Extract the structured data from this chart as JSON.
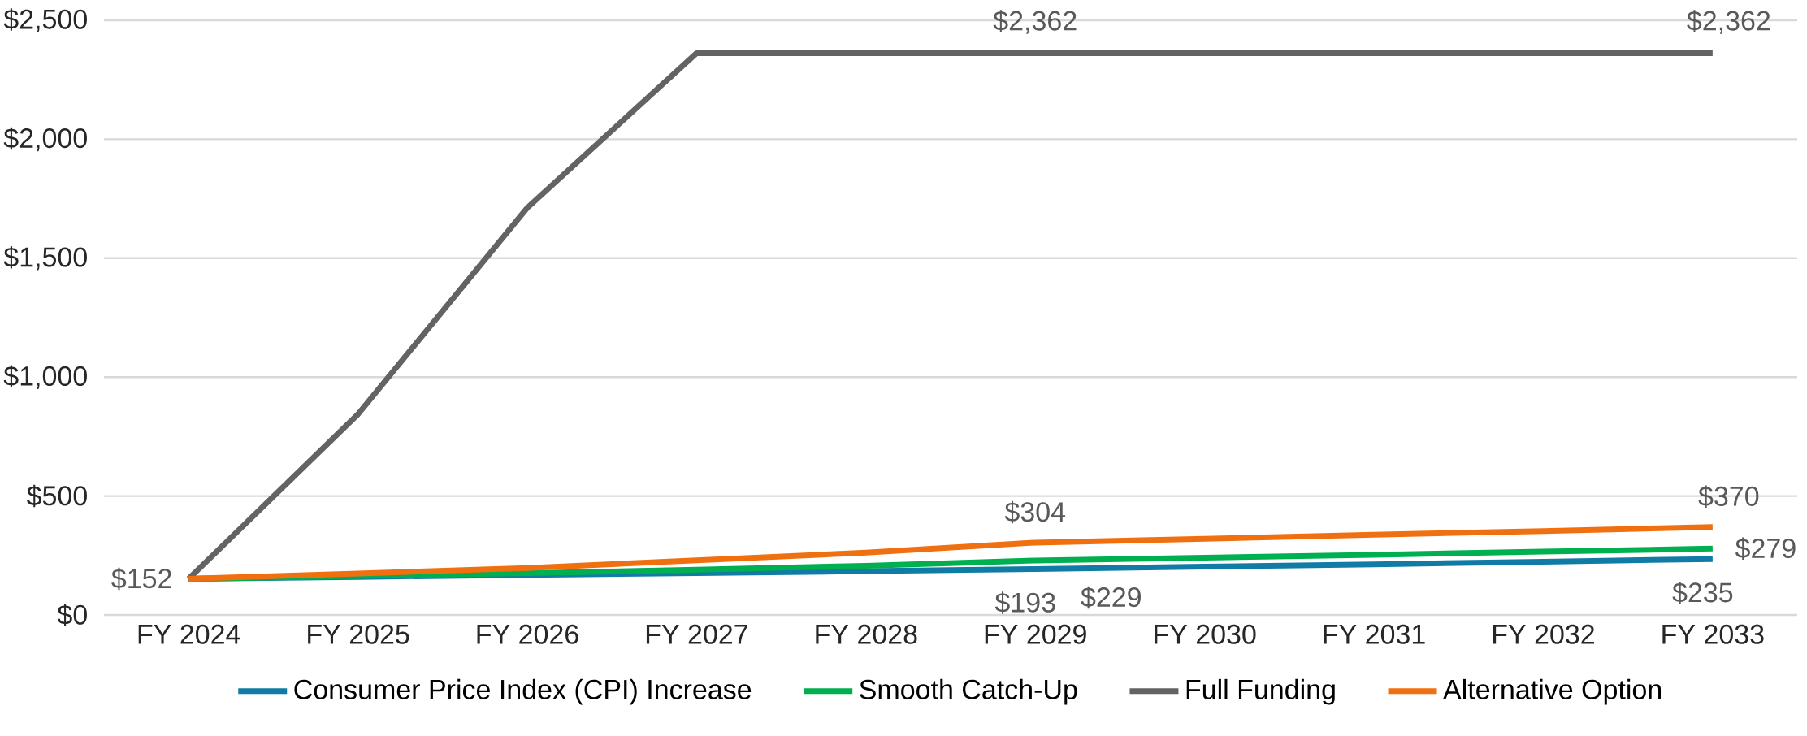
{
  "chart_data": {
    "type": "line",
    "categories": [
      "FY 2024",
      "FY 2025",
      "FY 2026",
      "FY 2027",
      "FY 2028",
      "FY 2029",
      "FY 2030",
      "FY 2031",
      "FY 2032",
      "FY 2033"
    ],
    "series": [
      {
        "name": "Consumer Price Index (CPI) Increase",
        "color": "#107ca6",
        "values": [
          152,
          160,
          168,
          176,
          184,
          193,
          203,
          213,
          224,
          235
        ],
        "value_labels": [
          null,
          null,
          null,
          null,
          null,
          "$193",
          null,
          null,
          null,
          "$235"
        ]
      },
      {
        "name": "Smooth Catch-Up",
        "color": "#00b050",
        "values": [
          152,
          164,
          176,
          190,
          207,
          229,
          241,
          253,
          266,
          279
        ],
        "value_labels": [
          null,
          null,
          null,
          null,
          null,
          "$229",
          null,
          null,
          null,
          "$279"
        ]
      },
      {
        "name": "Full Funding",
        "color": "#636363",
        "values": [
          152,
          844,
          1712,
          2362,
          2362,
          2362,
          2362,
          2362,
          2362,
          2362
        ],
        "value_labels": [
          null,
          null,
          null,
          null,
          null,
          "$2,362",
          null,
          null,
          null,
          "$2,362"
        ]
      },
      {
        "name": "Alternative Option",
        "color": "#f07010",
        "values": [
          152,
          174,
          197,
          230,
          262,
          304,
          320,
          337,
          353,
          370
        ],
        "value_labels": [
          "$152",
          null,
          null,
          null,
          null,
          "$304",
          null,
          null,
          null,
          "$370"
        ]
      }
    ],
    "ylim": [
      0,
      2500
    ],
    "yticks": [
      {
        "value": 0,
        "label": "$0"
      },
      {
        "value": 500,
        "label": "$500"
      },
      {
        "value": 1000,
        "label": "$1,000"
      },
      {
        "value": 1500,
        "label": "$1,500"
      },
      {
        "value": 2000,
        "label": "$2,000"
      },
      {
        "value": 2500,
        "label": "$2,500"
      }
    ],
    "grid": "y",
    "legend": "bottom",
    "marker": "none",
    "line_style": "solid"
  }
}
